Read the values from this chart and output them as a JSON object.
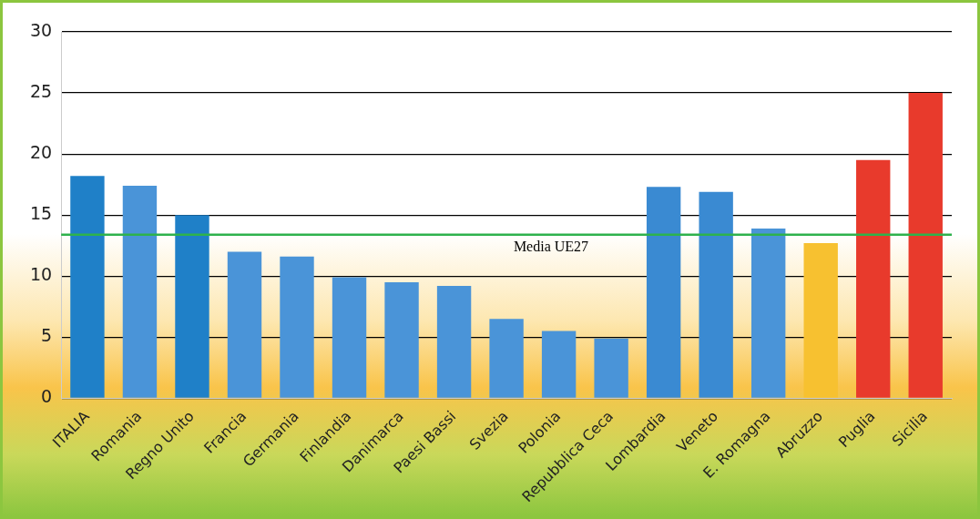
{
  "chart_data": {
    "type": "bar",
    "categories": [
      "ITALIA",
      "Romania",
      "Regno Unito",
      "Francia",
      "Germania",
      "Finlandia",
      "Danimarca",
      "Paesi Bassi",
      "Svezia",
      "Polonia",
      "Repubblica Ceca",
      "Lombardia",
      "Veneto",
      "E. Romagna",
      "Abruzzo",
      "Puglia",
      "Sicilia"
    ],
    "values": [
      18.2,
      17.4,
      15.0,
      12.0,
      11.6,
      9.9,
      9.5,
      9.2,
      6.5,
      5.5,
      4.9,
      17.3,
      16.9,
      13.9,
      12.7,
      19.5,
      25.0
    ],
    "colors": [
      "#1f80c8",
      "#4a94d8",
      "#1f80c8",
      "#4a94d8",
      "#4a94d8",
      "#4a94d8",
      "#4a94d8",
      "#4a94d8",
      "#4a94d8",
      "#4a94d8",
      "#4a94d8",
      "#3a8ad2",
      "#3a8ad2",
      "#4a94d8",
      "#f7c130",
      "#e83a2c",
      "#e83a2c"
    ],
    "ylim": [
      0,
      30
    ],
    "yticks": [
      0,
      5,
      10,
      15,
      20,
      25,
      30
    ],
    "grid": "y",
    "legend": false,
    "ref_lines": [
      {
        "axis": "y",
        "value": 13.4,
        "label": "Media UE27",
        "color": "#2eb24c"
      }
    ]
  }
}
